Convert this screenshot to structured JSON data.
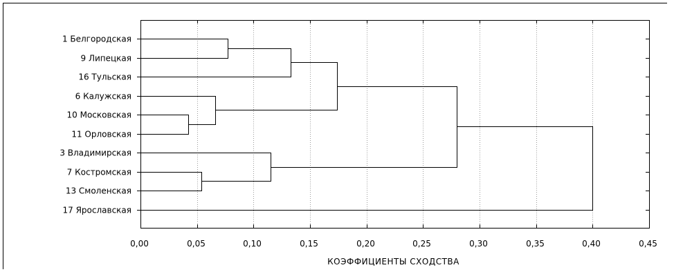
{
  "chart_data": {
    "type": "dendrogram",
    "title": "",
    "xlabel": "КОЭФФИЦИЕНТЫ СХОДСТВА",
    "xlim": [
      0,
      0.45
    ],
    "x_ticks": [
      "0,00",
      "0,05",
      "0,10",
      "0,15",
      "0,20",
      "0,25",
      "0,30",
      "0,35",
      "0,40",
      "0,45"
    ],
    "x_tick_values": [
      0,
      0.05,
      0.1,
      0.15,
      0.2,
      0.25,
      0.3,
      0.35,
      0.4,
      0.45
    ],
    "grid": "vertical dotted",
    "leaves": [
      "1 Белгородская",
      "9 Липецкая",
      "16 Тульская",
      "6 Калужская",
      "10 Московская",
      "11 Орловская",
      "3 Владимирская",
      "7 Костромская",
      "13 Смоленская",
      "17 Ярославская"
    ],
    "merges": [
      {
        "a": "L0",
        "b": "L1",
        "height": 0.077
      },
      {
        "a": "C0",
        "b": "L2",
        "height": 0.133
      },
      {
        "a": "L4",
        "b": "L5",
        "height": 0.042
      },
      {
        "a": "L3",
        "b": "C2",
        "height": 0.066
      },
      {
        "a": "C1",
        "b": "C3",
        "height": 0.174
      },
      {
        "a": "L7",
        "b": "L8",
        "height": 0.054
      },
      {
        "a": "L6",
        "b": "C5",
        "height": 0.115
      },
      {
        "a": "C4",
        "b": "C6",
        "height": 0.28
      },
      {
        "a": "C7",
        "b": "L9",
        "height": 0.4
      }
    ]
  }
}
